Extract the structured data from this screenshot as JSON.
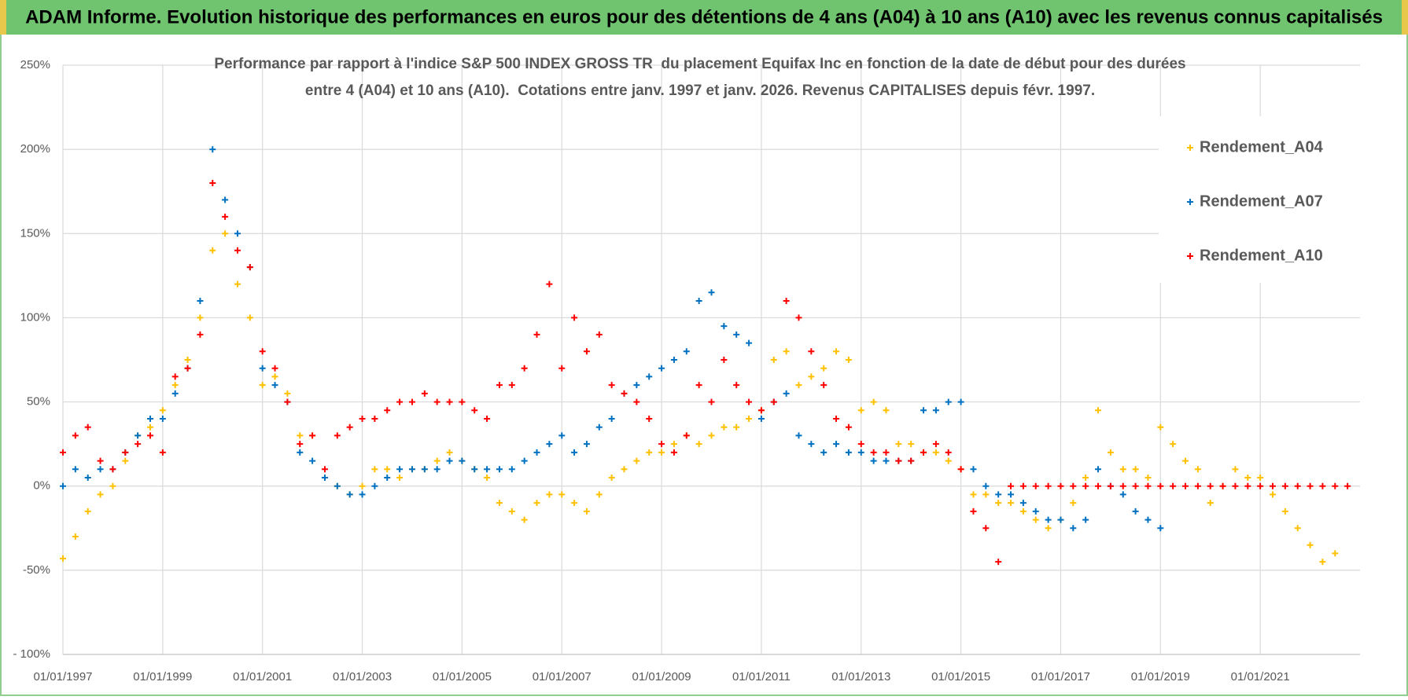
{
  "header": {
    "title": "ADAM Informe. Evolution historique des performances en euros pour des détentions de 4 ans (A04) à 10 ans (A10) avec les revenus connus capitalisés"
  },
  "chart_data": {
    "type": "scatter",
    "title": [
      "Performance par rapport à l'indice S&P 500 INDEX GROSS TR  du placement Equifax Inc en fonction de la date de début pour des durées",
      "entre 4 (A04) et 10 ans (A10).  Cotations entre janv. 1997 et janv. 2026. Revenus CAPITALISES depuis févr. 1997."
    ],
    "xlim": [
      "01/01/1997",
      "01/01/2023"
    ],
    "xticks": [
      "01/01/1997",
      "01/01/1999",
      "01/01/2001",
      "01/01/2003",
      "01/01/2005",
      "01/01/2007",
      "01/01/2009",
      "01/01/2011",
      "01/01/2013",
      "01/01/2015",
      "01/01/2017",
      "01/01/2019",
      "01/01/2021"
    ],
    "ylim": [
      -100,
      250
    ],
    "yticks": [
      {
        "value": -100,
        "label": "- 100%"
      },
      {
        "value": -50,
        "label": "-50%"
      },
      {
        "value": 0,
        "label": "0%"
      },
      {
        "value": 50,
        "label": "50%"
      },
      {
        "value": 100,
        "label": "100%"
      },
      {
        "value": 150,
        "label": "150%"
      },
      {
        "value": 200,
        "label": "200%"
      },
      {
        "value": 250,
        "label": "250%"
      }
    ],
    "grid": true,
    "legend": "right",
    "x": [
      "01/01/1997",
      "01/04/1997",
      "01/07/1997",
      "01/10/1997",
      "01/01/1998",
      "01/04/1998",
      "01/07/1998",
      "01/10/1998",
      "01/01/1999",
      "01/04/1999",
      "01/07/1999",
      "01/10/1999",
      "01/01/2000",
      "01/04/2000",
      "01/07/2000",
      "01/10/2000",
      "01/01/2001",
      "01/04/2001",
      "01/07/2001",
      "01/10/2001",
      "01/01/2002",
      "01/04/2002",
      "01/07/2002",
      "01/10/2002",
      "01/01/2003",
      "01/04/2003",
      "01/07/2003",
      "01/10/2003",
      "01/01/2004",
      "01/04/2004",
      "01/07/2004",
      "01/10/2004",
      "01/01/2005",
      "01/04/2005",
      "01/07/2005",
      "01/10/2005",
      "01/01/2006",
      "01/04/2006",
      "01/07/2006",
      "01/10/2006",
      "01/01/2007",
      "01/04/2007",
      "01/07/2007",
      "01/10/2007",
      "01/01/2008",
      "01/04/2008",
      "01/07/2008",
      "01/10/2008",
      "01/01/2009",
      "01/04/2009",
      "01/07/2009",
      "01/10/2009",
      "01/01/2010",
      "01/04/2010",
      "01/07/2010",
      "01/10/2010",
      "01/01/2011",
      "01/04/2011",
      "01/07/2011",
      "01/10/2011",
      "01/01/2012",
      "01/04/2012",
      "01/07/2012",
      "01/10/2012",
      "01/01/2013",
      "01/04/2013",
      "01/07/2013",
      "01/10/2013",
      "01/01/2014",
      "01/04/2014",
      "01/07/2014",
      "01/10/2014",
      "01/01/2015",
      "01/04/2015",
      "01/07/2015",
      "01/10/2015",
      "01/01/2016",
      "01/04/2016",
      "01/07/2016",
      "01/10/2016",
      "01/01/2017",
      "01/04/2017",
      "01/07/2017",
      "01/10/2017",
      "01/01/2018",
      "01/04/2018",
      "01/07/2018",
      "01/10/2018",
      "01/01/2019",
      "01/04/2019",
      "01/07/2019",
      "01/10/2019",
      "01/01/2020",
      "01/04/2020",
      "01/07/2020",
      "01/10/2020",
      "01/01/2021",
      "01/04/2021",
      "01/07/2021",
      "01/10/2021",
      "01/01/2022",
      "01/04/2022",
      "01/07/2022",
      "01/10/2022"
    ],
    "series": [
      {
        "name": "Rendement_A04",
        "color": "#ffc000",
        "values": [
          -43,
          -30,
          -15,
          -5,
          0,
          15,
          30,
          35,
          45,
          60,
          75,
          100,
          140,
          150,
          120,
          100,
          60,
          65,
          55,
          30,
          30,
          5,
          0,
          -5,
          0,
          10,
          10,
          5,
          10,
          10,
          15,
          20,
          15,
          10,
          5,
          -10,
          -15,
          -20,
          -10,
          -5,
          -5,
          -10,
          -15,
          -5,
          5,
          10,
          15,
          20,
          20,
          25,
          30,
          25,
          30,
          35,
          35,
          40,
          45,
          75,
          80,
          60,
          65,
          70,
          80,
          75,
          45,
          50,
          45,
          25,
          25,
          20,
          20,
          15,
          10,
          -5,
          -5,
          -10,
          -10,
          -15,
          -20,
          -25,
          -20,
          -10,
          5,
          45,
          20,
          10,
          10,
          5,
          35,
          25,
          15,
          10,
          -10,
          0,
          10,
          5,
          5,
          -5,
          -15,
          -25,
          -35,
          -45,
          -40,
          null
        ]
      },
      {
        "name": "Rendement_A07",
        "color": "#0070c0",
        "values": [
          0,
          10,
          5,
          10,
          10,
          20,
          30,
          40,
          40,
          55,
          70,
          110,
          200,
          170,
          150,
          130,
          70,
          60,
          50,
          20,
          15,
          5,
          0,
          -5,
          -5,
          0,
          5,
          10,
          10,
          10,
          10,
          15,
          15,
          10,
          10,
          10,
          10,
          15,
          20,
          25,
          30,
          20,
          25,
          35,
          40,
          55,
          60,
          65,
          70,
          75,
          80,
          110,
          115,
          95,
          90,
          85,
          40,
          50,
          55,
          30,
          25,
          20,
          25,
          20,
          20,
          15,
          15,
          15,
          15,
          45,
          45,
          50,
          50,
          10,
          0,
          -5,
          -5,
          -10,
          -15,
          -20,
          -20,
          -25,
          -20,
          10,
          0,
          -5,
          -15,
          -20,
          -25,
          null,
          null,
          null,
          null,
          null,
          null,
          null,
          null,
          null,
          null,
          null,
          null,
          null,
          null,
          null
        ]
      },
      {
        "name": "Rendement_A10",
        "color": "#ff0000",
        "values": [
          20,
          30,
          35,
          15,
          10,
          20,
          25,
          30,
          20,
          65,
          70,
          90,
          180,
          160,
          140,
          130,
          80,
          70,
          50,
          25,
          30,
          10,
          30,
          35,
          40,
          40,
          45,
          50,
          50,
          55,
          50,
          50,
          50,
          45,
          40,
          60,
          60,
          70,
          90,
          120,
          70,
          100,
          80,
          90,
          60,
          55,
          50,
          40,
          25,
          20,
          30,
          60,
          50,
          75,
          60,
          50,
          45,
          50,
          110,
          100,
          80,
          60,
          40,
          35,
          25,
          20,
          20,
          15,
          15,
          20,
          25,
          20,
          10,
          -15,
          -25,
          -45,
          0,
          0,
          0,
          0,
          0,
          0,
          0,
          0,
          0,
          0,
          0,
          0,
          0,
          0,
          0,
          0,
          0,
          0,
          0,
          0,
          0,
          0,
          0,
          0,
          0,
          0,
          0,
          0
        ]
      }
    ]
  }
}
